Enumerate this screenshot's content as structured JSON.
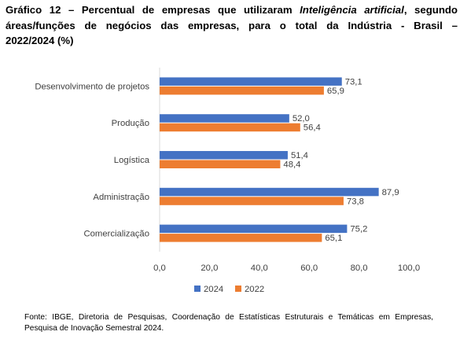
{
  "title": {
    "prefix": "Gráfico 12 – Percentual de empresas que utilizaram ",
    "italic": "Inteligência artificial",
    "line1_suffix": ", segundo",
    "line2": "áreas/funções de negócios das empresas, para o total da Indústria - Brasil –",
    "line3": "2022/2024 (%)"
  },
  "chart_data": {
    "type": "bar",
    "orientation": "horizontal",
    "categories": [
      "Desenvolvimento de projetos",
      "Produção",
      "Logística",
      "Administração",
      "Comercialização"
    ],
    "series": [
      {
        "name": "2024",
        "color": "#4472C4",
        "values": [
          73.1,
          52.0,
          51.4,
          87.9,
          75.2
        ],
        "labels": [
          "73,1",
          "52,0",
          "51,4",
          "87,9",
          "75,2"
        ]
      },
      {
        "name": "2022",
        "color": "#ED7D31",
        "values": [
          65.9,
          56.4,
          48.4,
          73.8,
          65.1
        ],
        "labels": [
          "65,9",
          "56,4",
          "48,4",
          "73,8",
          "65,1"
        ]
      }
    ],
    "xlim": [
      0,
      100
    ],
    "xticks": [
      0,
      20,
      40,
      60,
      80,
      100
    ],
    "xtick_labels": [
      "0,0",
      "20,0",
      "40,0",
      "60,0",
      "80,0",
      "100,0"
    ],
    "grid": false,
    "legend_position": "bottom"
  },
  "footer": "Fonte: IBGE, Diretoria de Pesquisas, Coordenação de Estatísticas Estruturais e Temáticas em Empresas, Pesquisa de Inovação Semestral 2024."
}
